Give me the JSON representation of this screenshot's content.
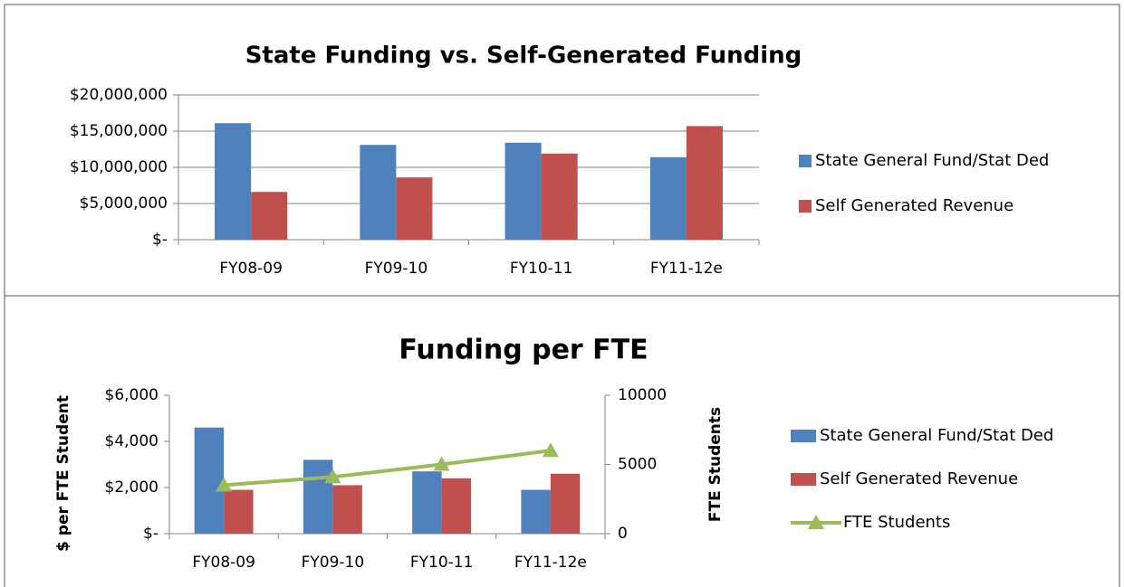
{
  "chart_data": [
    {
      "type": "bar",
      "title": "State Funding vs. Self-Generated Funding",
      "categories": [
        "FY08-09",
        "FY09-10",
        "FY10-11",
        "FY11-12e"
      ],
      "series": [
        {
          "name": "State General Fund/Stat Ded",
          "color": "#4f81bd",
          "values": [
            16100000,
            13100000,
            13400000,
            11400000
          ]
        },
        {
          "name": "Self Generated Revenue",
          "color": "#c0504d",
          "values": [
            6600000,
            8600000,
            11900000,
            15700000
          ]
        }
      ],
      "ylim": [
        0,
        20000000
      ],
      "yticks": [
        {
          "value": 0,
          "label": "$-"
        },
        {
          "value": 5000000,
          "label": "$5,000,000"
        },
        {
          "value": 10000000,
          "label": "$10,000,000"
        },
        {
          "value": 15000000,
          "label": "$15,000,000"
        },
        {
          "value": 20000000,
          "label": "$20,000,000"
        }
      ],
      "grid": true,
      "legend": "right"
    },
    {
      "type": "bar",
      "title": "Funding per FTE",
      "y_label": "$ per FTE Student",
      "y2_label": "FTE Students",
      "categories": [
        "FY08-09",
        "FY09-10",
        "FY10-11",
        "FY11-12e"
      ],
      "series": [
        {
          "name": "State General Fund/Stat Ded",
          "color": "#4f81bd",
          "values": [
            4600,
            3200,
            2700,
            1900
          ]
        },
        {
          "name": "Self Generated Revenue",
          "color": "#c0504d",
          "values": [
            1900,
            2100,
            2400,
            2600
          ]
        },
        {
          "name": "FTE Students",
          "color": "#9bbb59",
          "type": "line",
          "axis": "y2",
          "values": [
            3500,
            4100,
            5000,
            6000
          ]
        }
      ],
      "ylim": [
        0,
        6000
      ],
      "yticks": [
        {
          "value": 0,
          "label": "$-"
        },
        {
          "value": 2000,
          "label": "$2,000"
        },
        {
          "value": 4000,
          "label": "$4,000"
        },
        {
          "value": 6000,
          "label": "$6,000"
        }
      ],
      "y2lim": [
        0,
        10000
      ],
      "y2ticks": [
        0,
        5000,
        10000
      ],
      "grid": false,
      "legend": "right"
    }
  ]
}
